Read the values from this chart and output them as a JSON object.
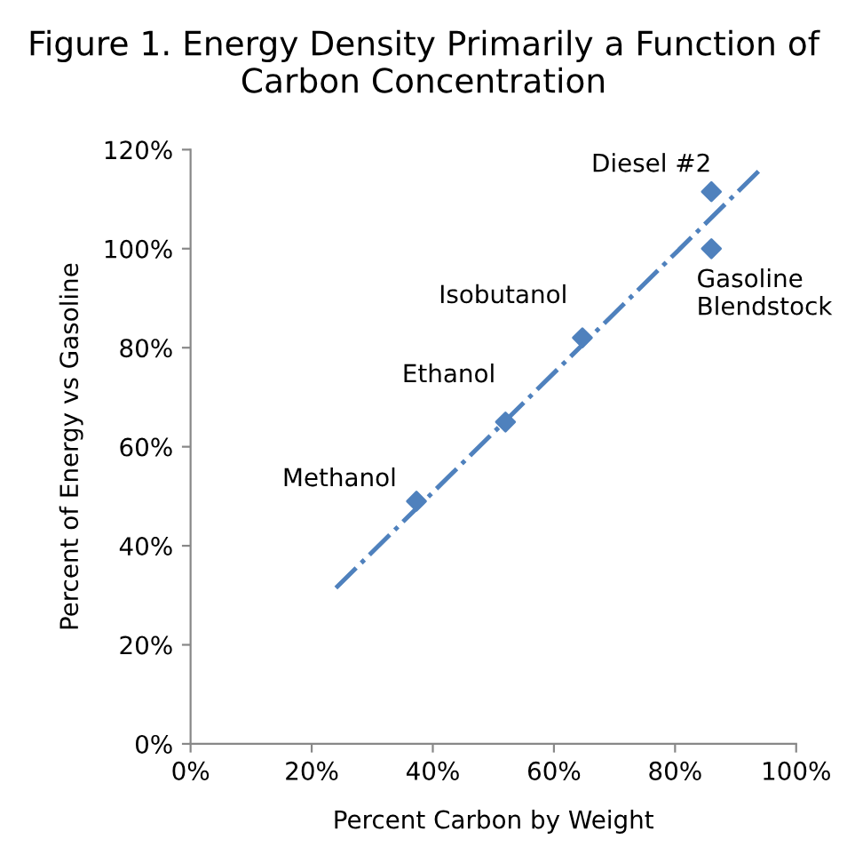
{
  "chart_data": {
    "type": "scatter",
    "title": "Figure 1. Energy Density Primarily a Function of Carbon Concentration",
    "xlabel": "Percent Carbon by Weight",
    "ylabel": "Percent of Energy vs Gasoline",
    "series": [
      {
        "color": "#4f81bd",
        "marker": "diamond",
        "x": [
          37.3,
          52,
          64.7,
          86,
          86
        ],
        "values": [
          49,
          65,
          82,
          111.5,
          100
        ]
      },
      {
        "type": "line",
        "color": "#4f81bd",
        "line_style": "dashed",
        "marker": "none",
        "x": [
          24,
          94.5
        ],
        "values": [
          31.5,
          116.5
        ]
      }
    ],
    "annotations": [
      {
        "text": "Methanol",
        "x": 37.3,
        "y": 49
      },
      {
        "text": "Ethanol",
        "x": 52,
        "y": 65
      },
      {
        "text": "Isobutanol",
        "x": 64.7,
        "y": 82
      },
      {
        "text": "Diesel #2",
        "x": 86,
        "y": 111.5
      },
      {
        "text": "Gasoline\nBlendstock",
        "x": 86,
        "y": 100
      }
    ],
    "xlim": [
      0,
      100
    ],
    "ylim": [
      0,
      120
    ],
    "xticks": [
      {
        "value": 0,
        "label": "0%"
      },
      {
        "value": 20,
        "label": "20%"
      },
      {
        "value": 40,
        "label": "40%"
      },
      {
        "value": 60,
        "label": "60%"
      },
      {
        "value": 80,
        "label": "80%"
      },
      {
        "value": 100,
        "label": "100%"
      }
    ],
    "yticks": [
      {
        "value": 0,
        "label": "0%"
      },
      {
        "value": 20,
        "label": "20%"
      },
      {
        "value": 40,
        "label": "40%"
      },
      {
        "value": 60,
        "label": "60%"
      },
      {
        "value": 80,
        "label": "80%"
      },
      {
        "value": 100,
        "label": "100%"
      },
      {
        "value": 120,
        "label": "120%"
      }
    ],
    "grid": false,
    "legend": false
  }
}
